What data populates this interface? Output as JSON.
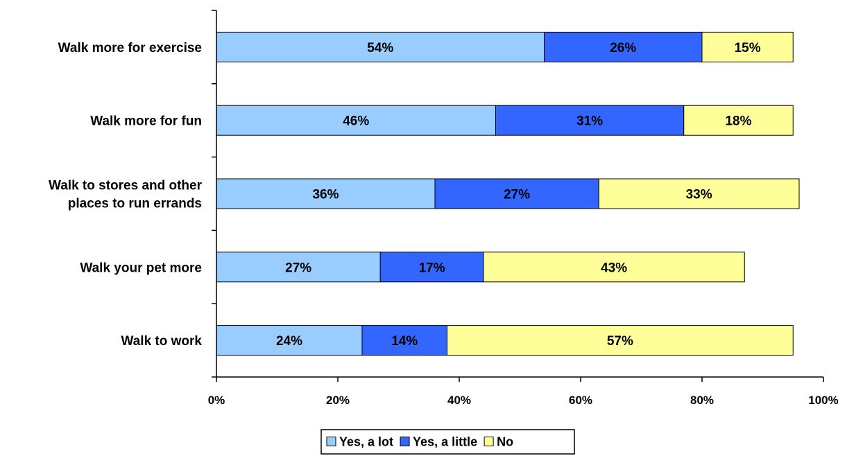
{
  "chart_data": {
    "type": "bar",
    "orientation": "horizontal",
    "stacked": true,
    "categories": [
      [
        "Walk more for exercise"
      ],
      [
        "Walk more for fun"
      ],
      [
        "Walk to stores and other",
        "places to run errands"
      ],
      [
        "Walk your pet more"
      ],
      [
        "Walk to work"
      ]
    ],
    "series": [
      {
        "name": "Yes, a lot",
        "color": "#99CCFF",
        "values": [
          54,
          46,
          36,
          27,
          24
        ],
        "labels": [
          "54%",
          "46%",
          "36%",
          "27%",
          "24%"
        ]
      },
      {
        "name": "Yes, a little",
        "color": "#3366FF",
        "values": [
          26,
          31,
          27,
          17,
          14
        ],
        "labels": [
          "26%",
          "31%",
          "27%",
          "17%",
          "14%"
        ]
      },
      {
        "name": "No",
        "color": "#FFFF99",
        "values": [
          15,
          18,
          33,
          43,
          57
        ],
        "labels": [
          "15%",
          "18%",
          "33%",
          "43%",
          "57%"
        ]
      }
    ],
    "x_ticks": [
      0,
      20,
      40,
      60,
      80,
      100
    ],
    "x_tick_labels": [
      "0%",
      "20%",
      "40%",
      "60%",
      "80%",
      "100%"
    ],
    "xlim": [
      0,
      100
    ],
    "grid": false,
    "legend_position": "bottom"
  }
}
